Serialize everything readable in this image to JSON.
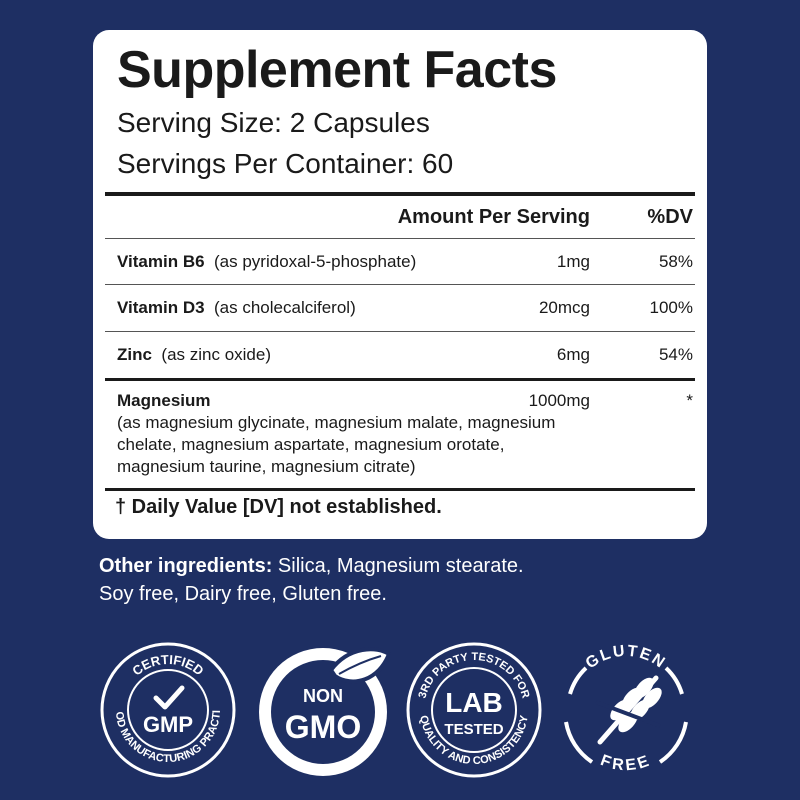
{
  "facts": {
    "title": "Supplement Facts",
    "serving_size": "Serving Size: 2 Capsules",
    "servings_per_container": "Servings Per Container: 60",
    "header_amount": "Amount Per Serving",
    "header_dv": "%DV",
    "rows": [
      {
        "name": "Vitamin B6",
        "detail": "(as pyridoxal-5-phosphate)",
        "amount": "1mg",
        "dv": "58%"
      },
      {
        "name": "Vitamin D3",
        "detail": "(as cholecalciferol)",
        "amount": "20mcg",
        "dv": "100%"
      },
      {
        "name": "Zinc",
        "detail": "(as zinc oxide)",
        "amount": "6mg",
        "dv": "54%"
      }
    ],
    "magnesium": {
      "name": "Magnesium",
      "amount": "1000mg",
      "dv": "*",
      "detail": "(as magnesium glycinate, magnesium malate, magnesium chelate, magnesium aspartate, magnesium orotate, magnesium taurine, magnesium citrate)"
    },
    "footnote": "† Daily Value [DV] not established."
  },
  "other_ingredients": {
    "label": "Other ingredients:",
    "text": " Silica, Magnesium stearate.",
    "free_from": "Soy free, Dairy free, Gluten free."
  },
  "badges": {
    "gmp": {
      "top": "CERTIFIED",
      "bottom": "GOOD MANUFACTURING PRACTICE",
      "center": "GMP",
      "icon": "checkmark-icon"
    },
    "non_gmo": {
      "line1": "NON",
      "line2": "GMO",
      "icon": "leaf-icon"
    },
    "lab": {
      "top": "3RD PARTY TESTED FOR",
      "bottom": "QUALITY AND CONSISTENCY",
      "line1": "LAB",
      "line2": "TESTED"
    },
    "gluten_free": {
      "top": "GLUTEN",
      "bottom": "FREE",
      "icon": "wheat-crossed-icon"
    },
    "colors": {
      "background": "#1e2f63",
      "white": "#ffffff"
    }
  }
}
